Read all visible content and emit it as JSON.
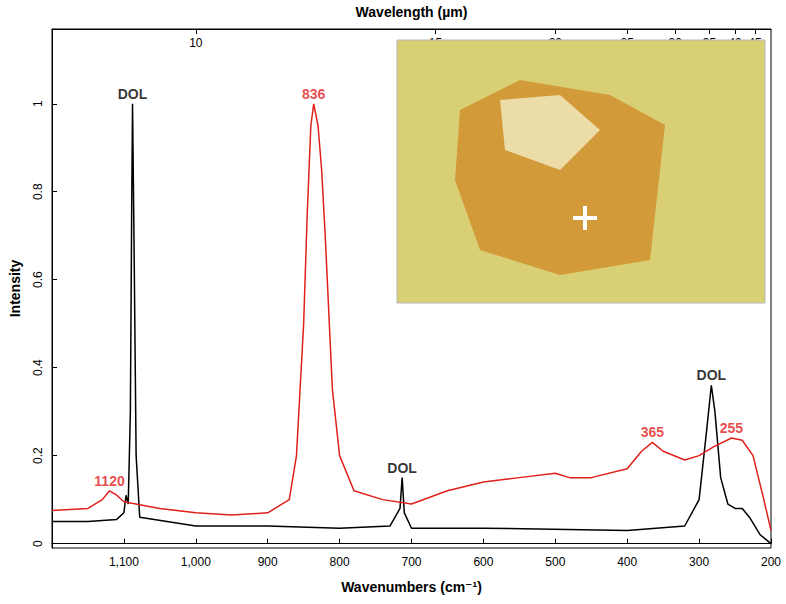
{
  "chart_data": {
    "type": "line",
    "x_label": "Wavenumbers (cm⁻¹)",
    "x2_label": "Wavelength (µm)",
    "y_label": "Intensity",
    "xlim": [
      1200,
      200
    ],
    "xticks": [
      1100,
      1000,
      900,
      800,
      700,
      600,
      500,
      400,
      300,
      200
    ],
    "x2ticks": [
      {
        "value": 1000,
        "label": "10"
      },
      {
        "value": 666.7,
        "label": "15"
      },
      {
        "value": 500,
        "label": "20"
      },
      {
        "value": 400,
        "label": "25"
      },
      {
        "value": 333.3,
        "label": "30"
      },
      {
        "value": 285.7,
        "label": "35"
      },
      {
        "value": 250,
        "label": "40"
      },
      {
        "value": 222.2,
        "label": "45"
      }
    ],
    "ylim": [
      -0.01,
      1.17
    ],
    "yticks": [
      0,
      0.2,
      0.4,
      0.6,
      0.8,
      1.0
    ],
    "grid": false,
    "series": [
      {
        "color": "#000000",
        "x": [
          1200,
          1150,
          1110,
          1100,
          1097,
          1094,
          1091,
          1089,
          1088,
          1086,
          1083,
          1078,
          1000,
          900,
          800,
          730,
          716,
          713,
          710,
          700,
          600,
          400,
          320,
          300,
          290,
          283,
          278,
          270,
          260,
          250,
          240,
          230,
          215,
          200
        ],
        "values": [
          0.05,
          0.05,
          0.055,
          0.07,
          0.11,
          0.09,
          0.3,
          0.8,
          1.0,
          0.7,
          0.2,
          0.06,
          0.04,
          0.04,
          0.035,
          0.04,
          0.08,
          0.15,
          0.07,
          0.035,
          0.035,
          0.03,
          0.04,
          0.1,
          0.25,
          0.36,
          0.3,
          0.15,
          0.09,
          0.08,
          0.08,
          0.06,
          0.02,
          0.0
        ]
      },
      {
        "color": "#e0201b",
        "x": [
          1200,
          1150,
          1130,
          1120,
          1110,
          1100,
          1050,
          1000,
          950,
          900,
          870,
          860,
          850,
          845,
          840,
          836,
          830,
          825,
          820,
          810,
          800,
          780,
          740,
          700,
          650,
          600,
          550,
          500,
          480,
          450,
          400,
          380,
          365,
          350,
          320,
          300,
          280,
          255,
          240,
          225,
          210,
          200
        ],
        "values": [
          0.075,
          0.08,
          0.1,
          0.12,
          0.11,
          0.095,
          0.08,
          0.07,
          0.065,
          0.07,
          0.1,
          0.2,
          0.5,
          0.75,
          0.95,
          1.0,
          0.95,
          0.85,
          0.7,
          0.35,
          0.2,
          0.12,
          0.1,
          0.09,
          0.12,
          0.14,
          0.15,
          0.16,
          0.15,
          0.15,
          0.17,
          0.21,
          0.23,
          0.21,
          0.19,
          0.2,
          0.22,
          0.24,
          0.235,
          0.2,
          0.1,
          0.03
        ]
      }
    ],
    "annotations": [
      {
        "text": "DOL",
        "x": 1088,
        "y": 1.0,
        "color": "#000000"
      },
      {
        "text": "DOL",
        "x": 713,
        "y": 0.15,
        "color": "#000000"
      },
      {
        "text": "DOL",
        "x": 283,
        "y": 0.36,
        "color": "#000000"
      },
      {
        "text": "836",
        "x": 836,
        "y": 1.0,
        "color": "#e0201b"
      },
      {
        "text": "1120",
        "x": 1120,
        "y": 0.12,
        "color": "#e0201b"
      },
      {
        "text": "365",
        "x": 365,
        "y": 0.23,
        "color": "#e0201b"
      },
      {
        "text": "255",
        "x": 255,
        "y": 0.24,
        "color": "#e0201b"
      }
    ]
  }
}
